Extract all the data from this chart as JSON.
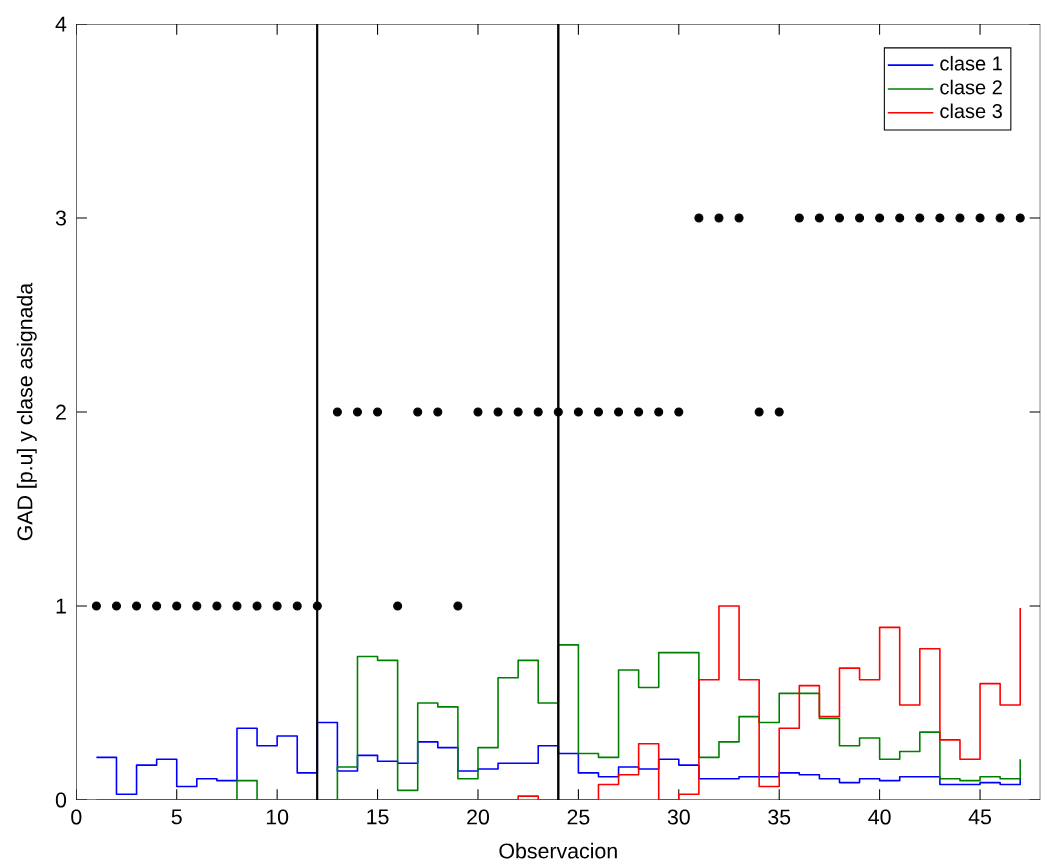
{
  "chart_data": {
    "type": "step",
    "xlabel": "Observacion",
    "ylabel": "GAD [p.u] y clase asignada",
    "xlim": [
      0,
      48
    ],
    "ylim": [
      0,
      4
    ],
    "xticks": [
      0,
      5,
      10,
      15,
      20,
      25,
      30,
      35,
      40,
      45
    ],
    "yticks": [
      0,
      1,
      2,
      3,
      4
    ],
    "grid": false,
    "legend": "top right",
    "x": [
      1,
      2,
      3,
      4,
      5,
      6,
      7,
      8,
      9,
      10,
      11,
      12,
      13,
      14,
      15,
      16,
      17,
      18,
      19,
      20,
      21,
      22,
      23,
      24,
      25,
      26,
      27,
      28,
      29,
      30,
      31,
      32,
      33,
      34,
      35,
      36,
      37,
      38,
      39,
      40,
      41,
      42,
      43,
      44,
      45,
      46,
      47
    ],
    "series": [
      {
        "name": "clase 1",
        "color": "#0000ff",
        "values": [
          0.22,
          0.03,
          0.18,
          0.21,
          0.07,
          0.11,
          0.1,
          0.37,
          0.28,
          0.33,
          0.14,
          0.4,
          0.15,
          0.23,
          0.2,
          0.19,
          0.3,
          0.27,
          0.15,
          0.16,
          0.19,
          0.19,
          0.28,
          0.24,
          0.14,
          0.12,
          0.17,
          0.16,
          0.21,
          0.18,
          0.11,
          0.11,
          0.12,
          0.12,
          0.14,
          0.13,
          0.11,
          0.09,
          0.11,
          0.1,
          0.12,
          0.12,
          0.08,
          0.08,
          0.09,
          0.08,
          0.11
        ]
      },
      {
        "name": "clase 2",
        "color": "#008000",
        "values": [
          0,
          0,
          0,
          0,
          0,
          0,
          0,
          0.1,
          0,
          null,
          null,
          0,
          0.17,
          0.74,
          0.72,
          0.05,
          0.5,
          0.48,
          0.11,
          0.27,
          0.63,
          0.72,
          0.5,
          0.8,
          0.24,
          0.22,
          0.67,
          0.58,
          0.76,
          0.76,
          0.22,
          0.3,
          0.43,
          0.4,
          0.55,
          0.55,
          0.42,
          0.28,
          0.32,
          0.21,
          0.25,
          0.35,
          0.11,
          0.1,
          0.12,
          0.11,
          0.21
        ]
      },
      {
        "name": "clase 3",
        "color": "#ff0000",
        "values": [
          null,
          null,
          null,
          null,
          null,
          null,
          null,
          0,
          0,
          0,
          0,
          0,
          0,
          0,
          0,
          0,
          0,
          0,
          0,
          0,
          0,
          0.02,
          0,
          0,
          0,
          0.08,
          0.13,
          0.29,
          0,
          0.03,
          0.62,
          1.0,
          0.62,
          0.07,
          0.37,
          0.59,
          0.43,
          0.68,
          0.62,
          0.89,
          0.49,
          0.78,
          0.31,
          0.21,
          0.6,
          0.49,
          0.99
        ]
      },
      {
        "type": "scatter",
        "marker": "circle",
        "color": "#000000",
        "values": [
          1,
          1,
          1,
          1,
          1,
          1,
          1,
          1,
          1,
          1,
          1,
          1,
          2,
          2,
          2,
          1,
          2,
          2,
          1,
          2,
          2,
          2,
          2,
          2,
          2,
          2,
          2,
          2,
          2,
          2,
          3,
          3,
          3,
          2,
          2,
          3,
          3,
          3,
          3,
          3,
          3,
          3,
          3,
          3,
          3,
          3,
          3
        ]
      }
    ],
    "ref_lines": [
      {
        "axis": "x",
        "value": 12,
        "color": "#000000"
      },
      {
        "axis": "x",
        "value": 24,
        "color": "#000000"
      }
    ]
  }
}
